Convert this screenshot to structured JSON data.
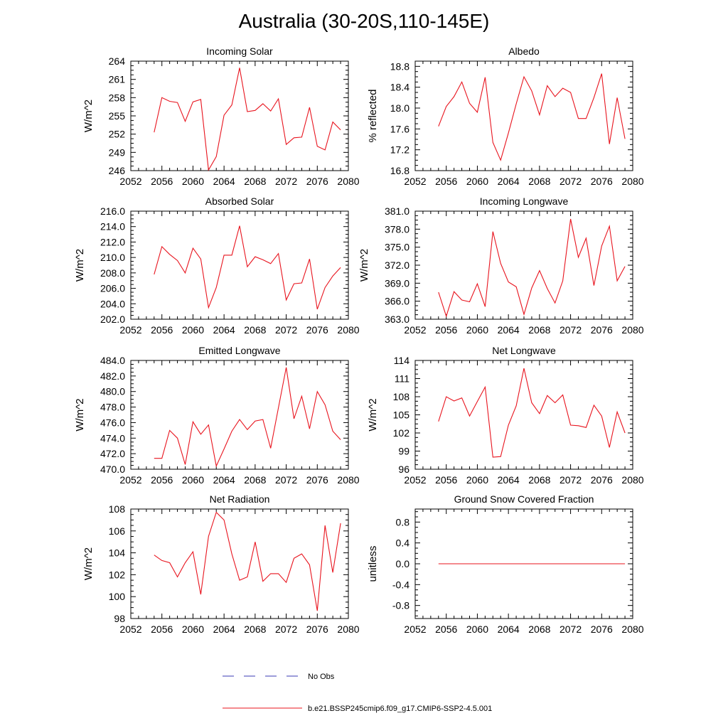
{
  "title": "Australia (30-20S,110-145E)",
  "legend": [
    {
      "label": "No Obs",
      "color": "#3b3bb4",
      "style": "dashed"
    },
    {
      "label": "b.e21.BSSP245cmip6.f09_g17.CMIP6-SSP2-4.5.001",
      "color": "#e8141e",
      "style": "solid"
    }
  ],
  "colors": {
    "series": "#e8141e"
  },
  "chart_data": [
    {
      "type": "line",
      "title": "Incoming Solar",
      "ylabel": "W/m^2",
      "xlim": [
        2052,
        2080
      ],
      "xticks": [
        "2052",
        "2056",
        "2060",
        "2064",
        "2068",
        "2072",
        "2076",
        "2080"
      ],
      "ylim": [
        246,
        264
      ],
      "yticks": [
        "246",
        "249",
        "252",
        "255",
        "258",
        "261",
        "264"
      ],
      "x": [
        2055,
        2056,
        2057,
        2058,
        2059,
        2060,
        2061,
        2062,
        2063,
        2064,
        2065,
        2066,
        2067,
        2068,
        2069,
        2070,
        2071,
        2072,
        2073,
        2074,
        2075,
        2076,
        2077,
        2078,
        2079
      ],
      "values": [
        252.3,
        258.0,
        257.4,
        257.2,
        254.1,
        257.3,
        257.7,
        246.1,
        248.3,
        255.1,
        256.8,
        262.9,
        255.7,
        255.9,
        257.0,
        255.8,
        257.8,
        250.3,
        251.4,
        251.5,
        256.4,
        250.0,
        249.4,
        254.0,
        252.7
      ]
    },
    {
      "type": "line",
      "title": "Albedo",
      "ylabel": "% reflected",
      "xlim": [
        2052,
        2080
      ],
      "xticks": [
        "2052",
        "2056",
        "2060",
        "2064",
        "2068",
        "2072",
        "2076",
        "2080"
      ],
      "ylim": [
        16.8,
        18.9
      ],
      "yticks": [
        "16.8",
        "17.2",
        "17.6",
        "18.0",
        "18.4",
        "18.8"
      ],
      "x": [
        2055,
        2056,
        2057,
        2058,
        2059,
        2060,
        2061,
        2062,
        2063,
        2064,
        2065,
        2066,
        2067,
        2068,
        2069,
        2070,
        2071,
        2072,
        2073,
        2074,
        2075,
        2076,
        2077,
        2078,
        2079
      ],
      "values": [
        17.65,
        18.03,
        18.22,
        18.5,
        18.09,
        17.92,
        18.59,
        17.34,
        17.0,
        17.52,
        18.08,
        18.6,
        18.33,
        17.87,
        18.43,
        18.22,
        18.38,
        18.3,
        17.8,
        17.8,
        18.2,
        18.66,
        17.31,
        18.2,
        17.41
      ]
    },
    {
      "type": "line",
      "title": "Absorbed Solar",
      "ylabel": "W/m^2",
      "xlim": [
        2052,
        2080
      ],
      "xticks": [
        "2052",
        "2056",
        "2060",
        "2064",
        "2068",
        "2072",
        "2076",
        "2080"
      ],
      "ylim": [
        202,
        216
      ],
      "yticks": [
        "202.0",
        "204.0",
        "206.0",
        "208.0",
        "210.0",
        "212.0",
        "214.0",
        "216.0"
      ],
      "x": [
        2055,
        2056,
        2057,
        2058,
        2059,
        2060,
        2061,
        2062,
        2063,
        2064,
        2065,
        2066,
        2067,
        2068,
        2069,
        2070,
        2071,
        2072,
        2073,
        2074,
        2075,
        2076,
        2077,
        2078,
        2079
      ],
      "values": [
        207.8,
        211.4,
        210.4,
        209.6,
        208.0,
        211.2,
        209.8,
        203.5,
        206.1,
        210.3,
        210.3,
        214.1,
        208.8,
        210.1,
        209.7,
        209.2,
        210.5,
        204.5,
        206.6,
        206.7,
        209.8,
        203.3,
        206.1,
        207.6,
        208.7
      ]
    },
    {
      "type": "line",
      "title": "Incoming Longwave",
      "ylabel": "W/m^2",
      "xlim": [
        2052,
        2080
      ],
      "xticks": [
        "2052",
        "2056",
        "2060",
        "2064",
        "2068",
        "2072",
        "2076",
        "2080"
      ],
      "ylim": [
        363,
        381
      ],
      "yticks": [
        "363.0",
        "366.0",
        "369.0",
        "372.0",
        "375.0",
        "378.0",
        "381.0"
      ],
      "x": [
        2055,
        2056,
        2057,
        2058,
        2059,
        2060,
        2061,
        2062,
        2063,
        2064,
        2065,
        2066,
        2067,
        2068,
        2069,
        2070,
        2071,
        2072,
        2073,
        2074,
        2075,
        2076,
        2077,
        2078,
        2079
      ],
      "values": [
        367.5,
        363.5,
        367.6,
        366.2,
        365.9,
        368.9,
        365.1,
        377.6,
        372.3,
        369.2,
        368.4,
        363.8,
        368.2,
        371.1,
        368.1,
        365.7,
        369.4,
        379.7,
        373.3,
        376.5,
        368.6,
        375.2,
        378.5,
        369.4,
        371.8
      ]
    },
    {
      "type": "line",
      "title": "Emitted Longwave",
      "ylabel": "W/m^2",
      "xlim": [
        2052,
        2080
      ],
      "xticks": [
        "2052",
        "2056",
        "2060",
        "2064",
        "2068",
        "2072",
        "2076",
        "2080"
      ],
      "ylim": [
        470,
        484
      ],
      "yticks": [
        "470.0",
        "472.0",
        "474.0",
        "476.0",
        "478.0",
        "480.0",
        "482.0",
        "484.0"
      ],
      "x": [
        2055,
        2056,
        2057,
        2058,
        2059,
        2060,
        2061,
        2062,
        2063,
        2064,
        2065,
        2066,
        2067,
        2068,
        2069,
        2070,
        2071,
        2072,
        2073,
        2074,
        2075,
        2076,
        2077,
        2078,
        2079
      ],
      "values": [
        471.4,
        471.4,
        475.0,
        474.0,
        470.6,
        476.1,
        474.5,
        475.7,
        470.4,
        472.6,
        474.9,
        476.4,
        475.1,
        476.2,
        476.4,
        472.7,
        477.9,
        483.1,
        476.5,
        479.4,
        475.2,
        480.0,
        478.3,
        474.9,
        473.8
      ]
    },
    {
      "type": "line",
      "title": "Net Longwave",
      "ylabel": "W/m^2",
      "xlim": [
        2052,
        2080
      ],
      "xticks": [
        "2052",
        "2056",
        "2060",
        "2064",
        "2068",
        "2072",
        "2076",
        "2080"
      ],
      "ylim": [
        96,
        114
      ],
      "yticks": [
        "96",
        "99",
        "102",
        "105",
        "108",
        "111",
        "114"
      ],
      "x": [
        2055,
        2056,
        2057,
        2058,
        2059,
        2060,
        2061,
        2062,
        2063,
        2064,
        2065,
        2066,
        2067,
        2068,
        2069,
        2070,
        2071,
        2072,
        2073,
        2074,
        2075,
        2076,
        2077,
        2078,
        2079
      ],
      "values": [
        103.9,
        108.0,
        107.3,
        107.8,
        104.8,
        107.2,
        109.6,
        98.0,
        98.1,
        103.3,
        106.5,
        112.7,
        107.0,
        105.2,
        108.2,
        107.0,
        108.3,
        103.3,
        103.2,
        102.9,
        106.6,
        104.8,
        99.6,
        105.5,
        102.0
      ]
    },
    {
      "type": "line",
      "title": "Net Radiation",
      "ylabel": "W/m^2",
      "xlim": [
        2052,
        2080
      ],
      "xticks": [
        "2052",
        "2056",
        "2060",
        "2064",
        "2068",
        "2072",
        "2076",
        "2080"
      ],
      "ylim": [
        98,
        108
      ],
      "yticks": [
        "98",
        "100",
        "102",
        "104",
        "106",
        "108"
      ],
      "x": [
        2055,
        2056,
        2057,
        2058,
        2059,
        2060,
        2061,
        2062,
        2063,
        2064,
        2065,
        2066,
        2067,
        2068,
        2069,
        2070,
        2071,
        2072,
        2073,
        2074,
        2075,
        2076,
        2077,
        2078,
        2079
      ],
      "values": [
        103.8,
        103.3,
        103.1,
        101.8,
        103.1,
        104.1,
        100.2,
        105.5,
        107.7,
        107.0,
        103.9,
        101.5,
        101.8,
        105.0,
        101.4,
        102.1,
        102.1,
        101.3,
        103.5,
        103.9,
        102.9,
        98.7,
        106.5,
        102.2,
        106.7
      ]
    },
    {
      "type": "line",
      "title": "Ground Snow Covered Fraction",
      "ylabel": "unitless",
      "xlim": [
        2052,
        2080
      ],
      "xticks": [
        "2052",
        "2056",
        "2060",
        "2064",
        "2068",
        "2072",
        "2076",
        "2080"
      ],
      "ylim": [
        -1.05,
        1.05
      ],
      "yticks": [
        "-0.8",
        "-0.4",
        "0.0",
        "0.4",
        "0.8"
      ],
      "x": [
        2055,
        2079
      ],
      "values": [
        0.0,
        0.0
      ]
    }
  ]
}
